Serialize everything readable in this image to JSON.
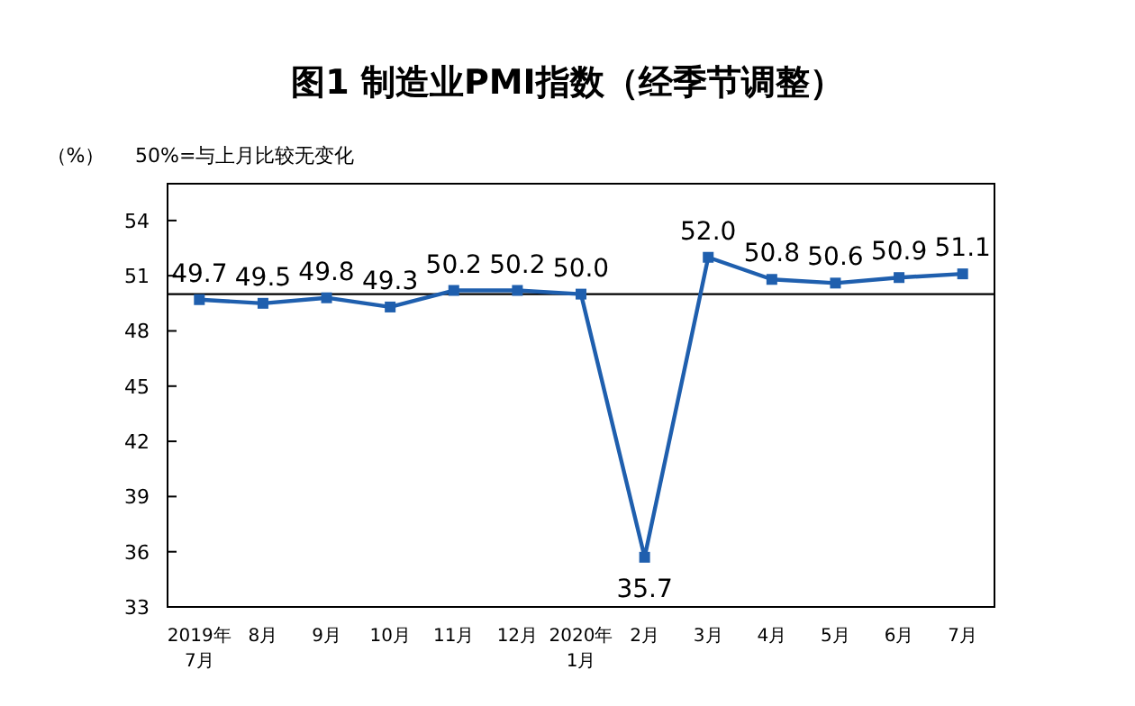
{
  "chart_data": {
    "type": "line",
    "title": "图1  制造业PMI指数（经季节调整）",
    "ylabel": "（%）",
    "annotations": [
      "50%=与上月比较无变化"
    ],
    "categories": [
      "2019年\n7月",
      "8月",
      "9月",
      "10月",
      "11月",
      "12月",
      "2020年\n1月",
      "2月",
      "3月",
      "4月",
      "5月",
      "6月",
      "7月"
    ],
    "series": [
      {
        "color": "#1f5fae",
        "values": [
          49.7,
          49.5,
          49.8,
          49.3,
          50.2,
          50.2,
          50.0,
          35.7,
          52.0,
          50.8,
          50.6,
          50.9,
          51.1
        ],
        "value_labels": [
          "49.7",
          "49.5",
          "49.8",
          "49.3",
          "50.2",
          "50.2",
          "50.0",
          "35.7",
          "52.0",
          "50.8",
          "50.6",
          "50.9",
          "51.1"
        ]
      }
    ],
    "ylim": [
      33,
      56
    ],
    "yticks": [
      33,
      36,
      39,
      42,
      45,
      48,
      51,
      54
    ],
    "ref_lines": [
      {
        "axis": "y",
        "value": 50,
        "color": "#000000"
      }
    ],
    "marker": "square",
    "line_style": "solid",
    "grid": false
  }
}
